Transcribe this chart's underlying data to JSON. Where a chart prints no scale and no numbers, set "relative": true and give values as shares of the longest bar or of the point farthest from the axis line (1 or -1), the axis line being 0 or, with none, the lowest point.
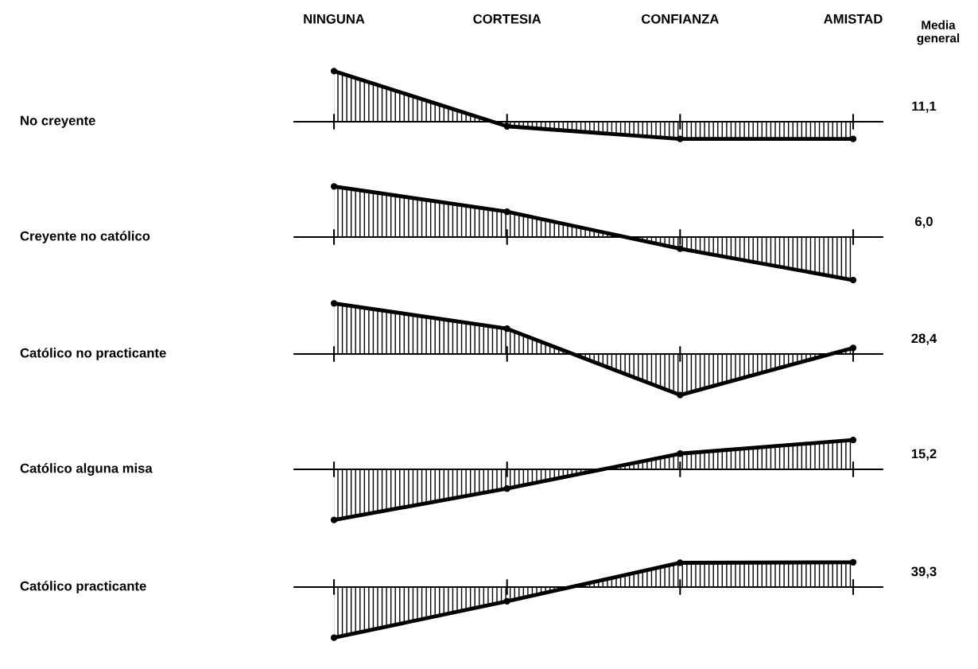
{
  "chart_data": [
    {
      "type": "area",
      "relative": true,
      "ylabel": "No creyente",
      "categories": [
        "NINGUNA",
        "CORTESIA",
        "CONFIANZA",
        "AMISTAD"
      ],
      "tick_labels": "x",
      "marker": "circle",
      "annotations": [
        "11,1",
        "Media general"
      ],
      "series": [
        {
          "color": "#000000",
          "values": [
            1,
            -0.09,
            -0.34,
            -0.34
          ]
        }
      ]
    },
    {
      "type": "area",
      "relative": true,
      "ylabel": "Creyente no católico",
      "categories": [
        null,
        null,
        null,
        null
      ],
      "tick_labels": false,
      "marker": "circle",
      "annotations": [
        "6,0"
      ],
      "series": [
        {
          "color": "#000000",
          "values": [
            1,
            0.5,
            -0.23,
            -0.85
          ]
        }
      ]
    },
    {
      "type": "area",
      "relative": true,
      "ylabel": "Católico no practicante",
      "categories": [
        null,
        null,
        null,
        null
      ],
      "tick_labels": false,
      "marker": "circle",
      "annotations": [
        "28,4"
      ],
      "series": [
        {
          "color": "#000000",
          "values": [
            1,
            0.5,
            -0.81,
            0.12
          ]
        }
      ]
    },
    {
      "type": "area",
      "relative": true,
      "ylabel": "Católico alguna misa",
      "categories": [
        null,
        null,
        null,
        null
      ],
      "tick_labels": false,
      "marker": "circle",
      "annotations": [
        "15,2"
      ],
      "series": [
        {
          "color": "#000000",
          "values": [
            -1,
            -0.38,
            0.31,
            0.58
          ]
        }
      ]
    },
    {
      "type": "area",
      "relative": true,
      "ylabel": "Católico practicante",
      "categories": [
        null,
        null,
        null,
        null
      ],
      "tick_labels": false,
      "marker": "circle",
      "annotations": [
        "39,3"
      ],
      "series": [
        {
          "color": "#000000",
          "values": [
            -1,
            -0.28,
            0.48,
            0.49
          ]
        }
      ]
    }
  ]
}
